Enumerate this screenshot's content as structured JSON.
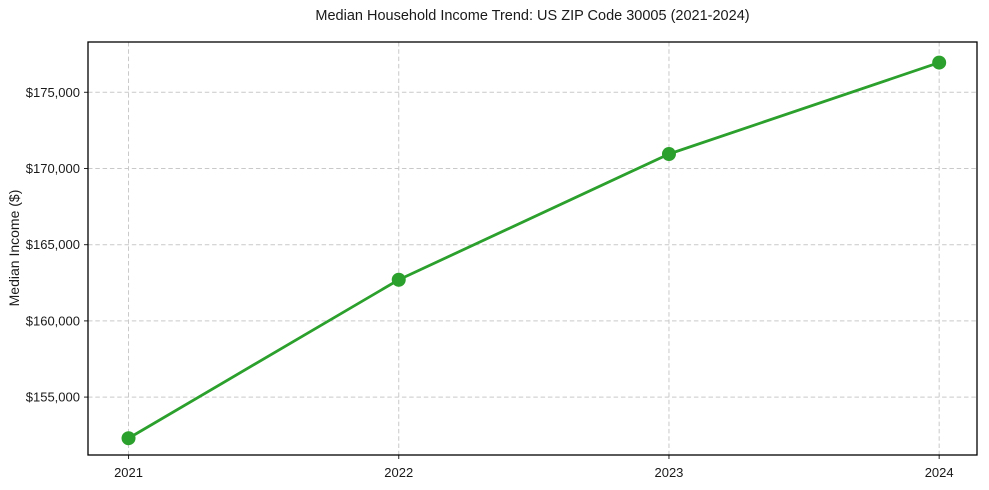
{
  "chart_data": {
    "type": "line",
    "title": "Median Household Income Trend: US ZIP Code 30005 (2021-2024)",
    "xlabel": "",
    "ylabel": "Median Income ($)",
    "x": [
      2021,
      2022,
      2023,
      2024
    ],
    "x_tick_labels": [
      "2021",
      "2022",
      "2023",
      "2024"
    ],
    "values": [
      152300,
      162700,
      170950,
      176950
    ],
    "y_ticks": [
      155000,
      160000,
      165000,
      170000,
      175000
    ],
    "y_tick_labels": [
      "$155,000",
      "$160,000",
      "$165,000",
      "$170,000",
      "$175,000"
    ],
    "xlim": [
      2020.85,
      2024.14
    ],
    "ylim": [
      151200,
      178300
    ],
    "grid": {
      "show": true,
      "axis": "both",
      "style": "dashed"
    },
    "legend": "none",
    "line_color": "#2ca02c",
    "marker": "circle",
    "marker_radius": 7,
    "grid_color": "#c9c9c9",
    "frame_color": "#000000",
    "background_color": "#ffffff"
  }
}
